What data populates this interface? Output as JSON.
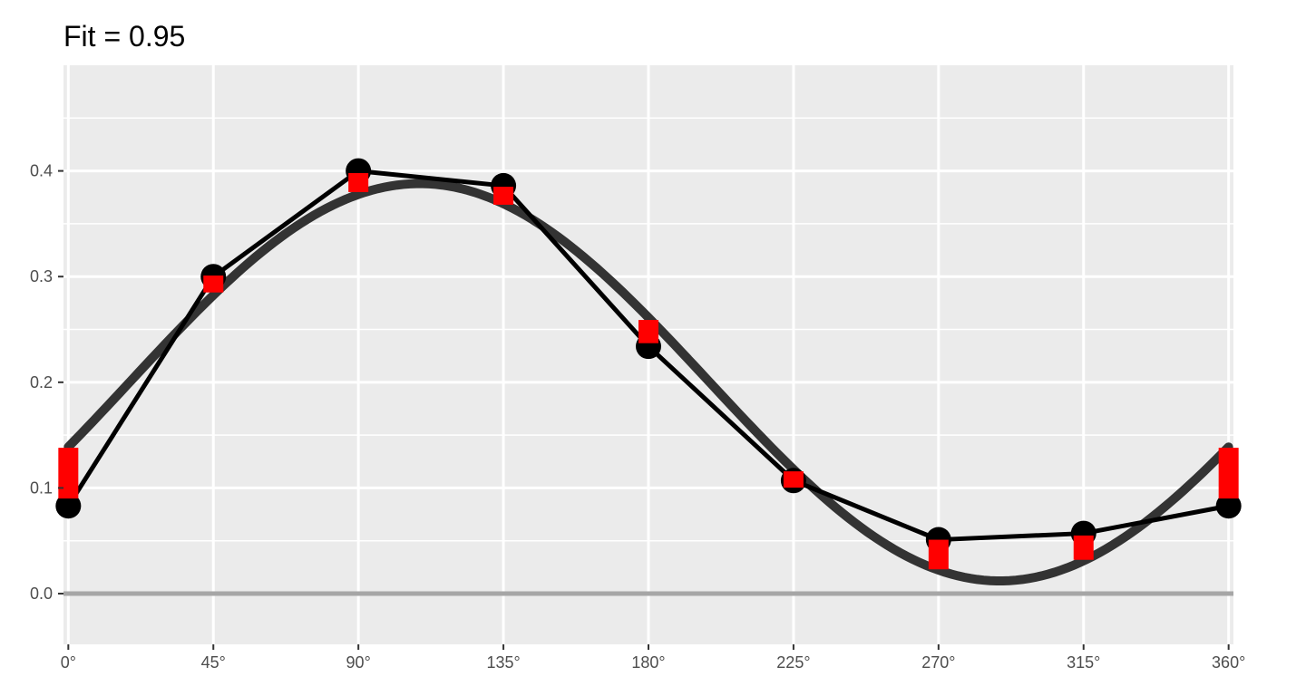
{
  "chart_data": {
    "type": "line",
    "title": "Fit = 0.95",
    "xlabel": "",
    "ylabel": "",
    "x_unit": "°",
    "xlim": [
      -1.5,
      361.5
    ],
    "ylim": [
      -0.048,
      0.5
    ],
    "x_ticks": [
      0,
      45,
      90,
      135,
      180,
      225,
      270,
      315,
      360
    ],
    "x_tick_labels": [
      "0°",
      "45°",
      "90°",
      "135°",
      "180°",
      "225°",
      "270°",
      "315°",
      "360°"
    ],
    "y_ticks": [
      0.0,
      0.1,
      0.2,
      0.3,
      0.4
    ],
    "y_tick_labels": [
      "0.0",
      "0.1",
      "0.2",
      "0.3",
      "0.4"
    ],
    "reference_line_y": 0.0,
    "grid": true,
    "observed": {
      "x": [
        0,
        45,
        90,
        135,
        180,
        225,
        270,
        315,
        360
      ],
      "y": [
        0.083,
        0.3,
        0.4,
        0.386,
        0.234,
        0.107,
        0.051,
        0.057,
        0.083
      ]
    },
    "predicted": {
      "x": [
        0,
        45,
        90,
        135,
        180,
        225,
        270,
        315,
        360
      ],
      "y": [
        0.115,
        0.293,
        0.39,
        0.377,
        0.248,
        0.108,
        0.037,
        0.043,
        0.115
      ],
      "ranges": [
        [
          0.09,
          0.138
        ],
        [
          0.285,
          0.301
        ],
        [
          0.38,
          0.398
        ],
        [
          0.368,
          0.385
        ],
        [
          0.237,
          0.259
        ],
        [
          0.104,
          0.112
        ],
        [
          0.023,
          0.051
        ],
        [
          0.032,
          0.055
        ],
        [
          0.09,
          0.138
        ]
      ]
    },
    "fitted_curve": {
      "form": "cosine",
      "mean": 0.2,
      "amplitude": 0.188,
      "peak_x": 109,
      "x_range": [
        0,
        360
      ]
    },
    "colors": {
      "panel_background": "#ebebeb",
      "grid": "#ffffff",
      "observed": "#000000",
      "predicted": "#ff0000",
      "fitted_curve": "#333333",
      "reference_line": "#a6a6a6"
    }
  }
}
